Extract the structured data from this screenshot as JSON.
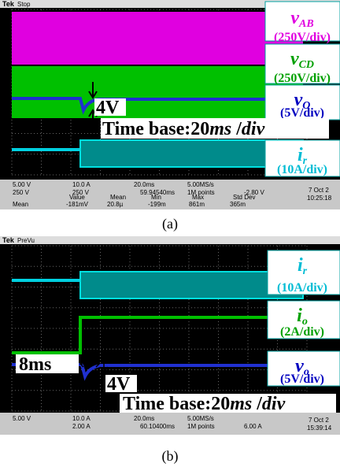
{
  "panels": [
    {
      "scope": {
        "brand": "Tek",
        "status": "Stop"
      },
      "annotations": [
        {
          "symbol": "v",
          "sub": "AB",
          "scale": "(250V/div)",
          "color": "#e000e0"
        },
        {
          "symbol": "v",
          "sub": "CD",
          "scale": "(250V/div)",
          "color": "#00a000"
        },
        {
          "symbol": "v",
          "sub": "O",
          "scale": "(5V/div)",
          "color": "#0000c0"
        },
        {
          "symbol": "i",
          "sub": "r",
          "scale": "(10A/div)",
          "color": "#00bcd4"
        }
      ],
      "step_label": "4V",
      "time_base": [
        "Time base:20",
        "ms",
        " /",
        "div"
      ],
      "info": {
        "ch1": "5.00 V",
        "ch3": "250 V",
        "ch2": "10.0 A",
        "ch4": "250 V",
        "timebase": "20.0ms",
        "rate": "5.00MS/s",
        "points": "1M points",
        "trigger_pos": "59.94540ms",
        "trigger_level": "-2.80 V",
        "date": "7 Oct 2",
        "time": "10:25:18"
      },
      "measurements": {
        "headers": [
          "Value",
          "Mean",
          "Min",
          "Max",
          "Std Dev"
        ],
        "row_label": "Mean",
        "row": [
          "-181mV",
          "20.8µ",
          "-199m",
          "861m",
          "365m"
        ]
      },
      "caption": "(a)"
    },
    {
      "scope": {
        "brand": "Tek",
        "status": "PreVu"
      },
      "annotations": [
        {
          "symbol": "i",
          "sub": "r",
          "scale": "(10A/div)",
          "color": "#00bcd4"
        },
        {
          "symbol": "i",
          "sub": "o",
          "scale": "(2A/div)",
          "color": "#00a000"
        },
        {
          "symbol": "v",
          "sub": "o",
          "scale": "(5V/div)",
          "color": "#0000c0"
        }
      ],
      "delay_label": "8ms",
      "step_label": "4V",
      "time_base": [
        "Time base:20",
        "ms",
        " /",
        "div"
      ],
      "info": {
        "ch1": "5.00 V",
        "ch2": "10.0 A",
        "ch4": "2.00 A",
        "timebase": "20.0ms",
        "rate": "5.00MS/s",
        "points": "1M points",
        "trigger_pos": "60.10400ms",
        "trigger_level": "6.00 A",
        "date": "7 Oct 2",
        "time": "15:39:14"
      },
      "caption": "(b)"
    }
  ]
}
